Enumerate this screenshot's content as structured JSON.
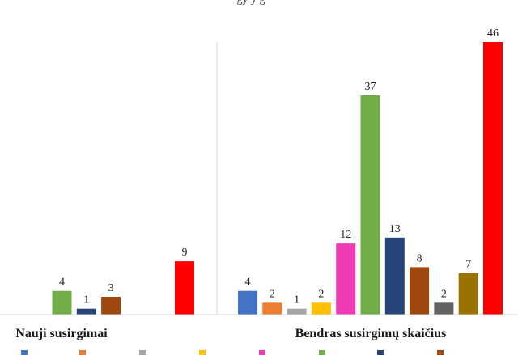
{
  "chart_data": {
    "type": "bar",
    "title": "",
    "xlabel": "",
    "ylabel": "",
    "ylim": [
      0,
      46
    ],
    "grid": false,
    "legend": "bottom",
    "categories": [
      "Nauji susirgimai",
      "Bendras susirgimų skaičius"
    ],
    "series": [
      {
        "color": "#4472c4",
        "values": [
          null,
          4
        ]
      },
      {
        "color": "#ed7d31",
        "values": [
          null,
          2
        ]
      },
      {
        "color": "#a5a5a5",
        "values": [
          null,
          1
        ]
      },
      {
        "color": "#ffc000",
        "values": [
          null,
          2
        ]
      },
      {
        "color": "#f03cb4",
        "values": [
          null,
          12
        ]
      },
      {
        "color": "#70ad47",
        "values": [
          4,
          37
        ]
      },
      {
        "color": "#264478",
        "values": [
          1,
          13
        ]
      },
      {
        "color": "#9e480e",
        "values": [
          3,
          8
        ]
      },
      {
        "color": "#636363",
        "values": [
          null,
          2
        ]
      },
      {
        "color": "#997300",
        "values": [
          null,
          7
        ]
      },
      {
        "color": "#ff0000",
        "values": [
          9,
          46
        ]
      }
    ]
  }
}
